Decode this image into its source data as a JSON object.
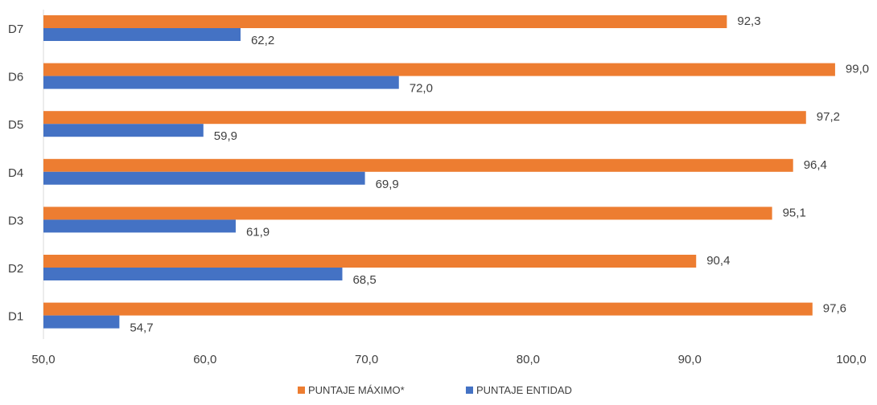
{
  "chart_data": {
    "type": "bar",
    "orientation": "horizontal",
    "categories": [
      "D1",
      "D2",
      "D3",
      "D4",
      "D5",
      "D6",
      "D7"
    ],
    "series": [
      {
        "name": "PUNTAJE MÁXIMO*",
        "color": "#ED7D31",
        "values": [
          97.6,
          90.4,
          95.1,
          96.4,
          97.2,
          99.0,
          92.3
        ],
        "labels": [
          "97,6",
          "90,4",
          "95,1",
          "96,4",
          "97,2",
          "99,0",
          "92,3"
        ]
      },
      {
        "name": "PUNTAJE ENTIDAD",
        "color": "#4472C4",
        "values": [
          54.7,
          68.5,
          61.9,
          69.9,
          59.9,
          72.0,
          62.2
        ],
        "labels": [
          "54,7",
          "68,5",
          "61,9",
          "69,9",
          "59,9",
          "72,0",
          "62,2"
        ]
      }
    ],
    "xlim": [
      50,
      100
    ],
    "xticks": [
      50,
      60,
      70,
      80,
      90,
      100
    ],
    "xtick_labels": [
      "50,0",
      "60,0",
      "70,0",
      "80,0",
      "90,0",
      "100,0"
    ],
    "title": "",
    "xlabel": "",
    "ylabel": "",
    "grid": false,
    "legend": {
      "position": "bottom",
      "entries": [
        "PUNTAJE MÁXIMO*",
        "PUNTAJE ENTIDAD"
      ]
    }
  }
}
